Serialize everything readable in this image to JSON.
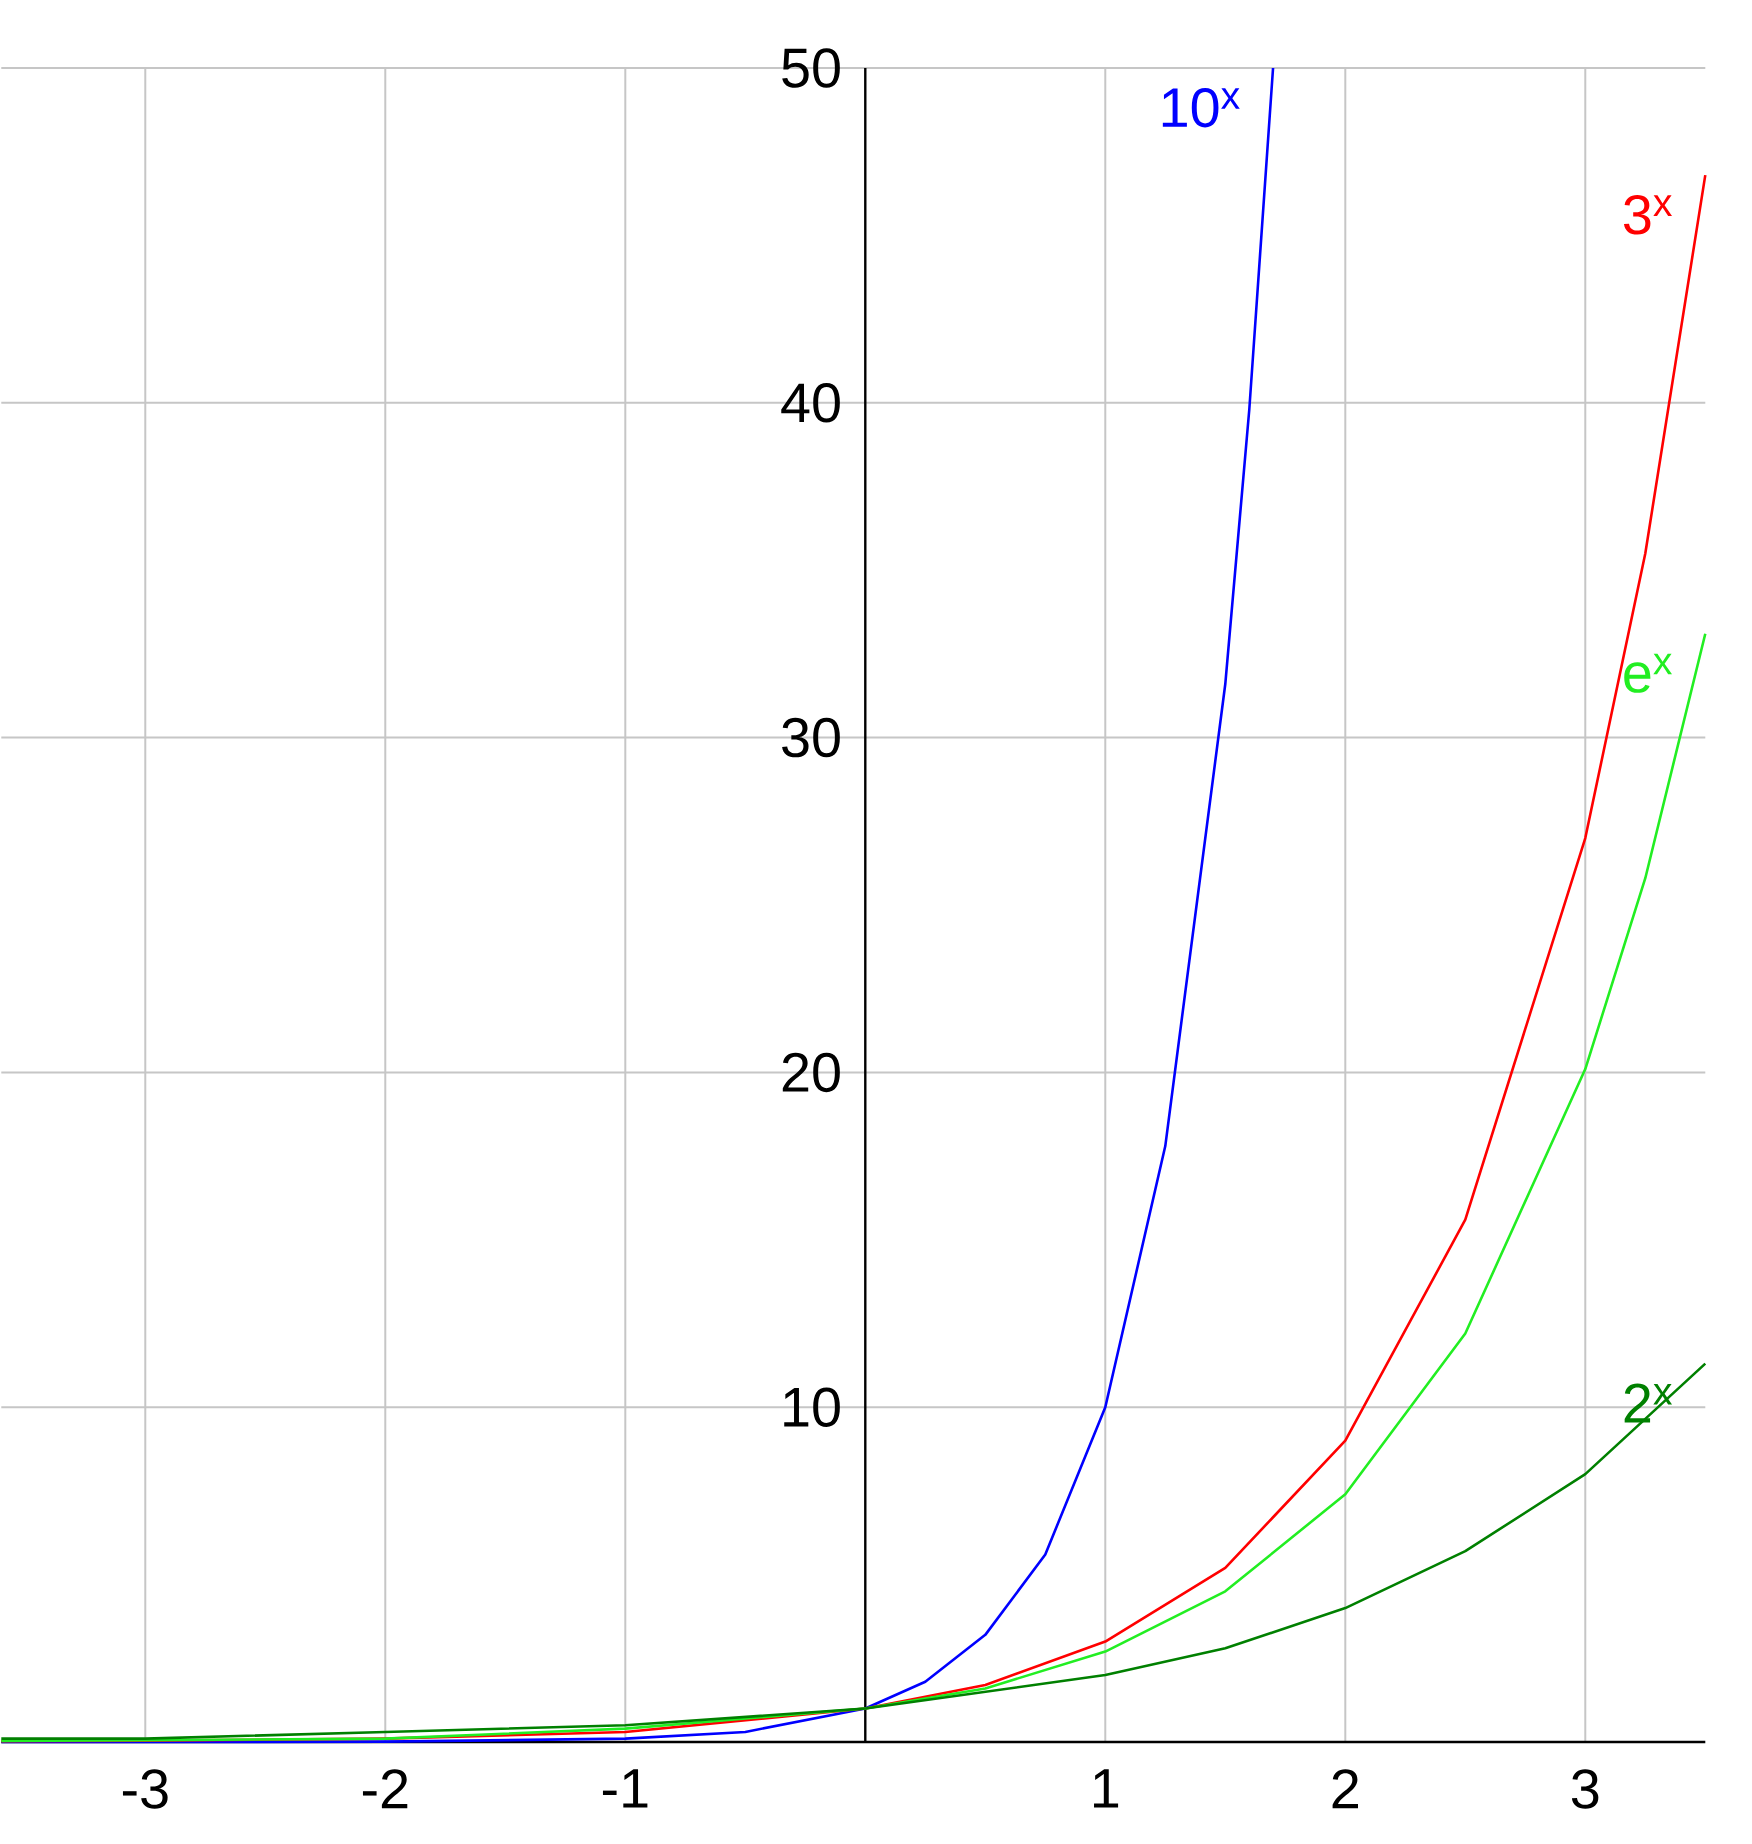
{
  "chart_data": {
    "type": "line",
    "xlim": [
      -3.6,
      3.5
    ],
    "ylim": [
      0,
      50
    ],
    "xticks": [
      -3,
      -2,
      -1,
      1,
      2,
      3
    ],
    "yticks": [
      10,
      20,
      30,
      40,
      50
    ],
    "grid": true,
    "marker": "none",
    "line_style": "solid",
    "series": [
      {
        "name": "10$^{x}$",
        "color": "#0000ff",
        "x": [
          -3.6,
          -3,
          -2,
          -1,
          -0.5,
          0,
          0.25,
          0.5,
          0.75,
          1,
          1.25,
          1.5,
          1.6,
          1.699
        ],
        "values": [
          0,
          0,
          0.01,
          0.1,
          0.3,
          1,
          1.8,
          3.2,
          5.6,
          10,
          17.8,
          31.6,
          39.8,
          50
        ]
      },
      {
        "name": "3$^{x}$",
        "color": "#ff0000",
        "x": [
          -3.6,
          -3,
          -2,
          -1,
          0,
          0.5,
          1,
          1.5,
          2,
          2.5,
          3,
          3.25,
          3.5
        ],
        "values": [
          0.02,
          0.04,
          0.1,
          0.3,
          1,
          1.7,
          3,
          5.2,
          9,
          15.6,
          27,
          35.5,
          46.8
        ]
      },
      {
        "name": "e$^{x}$",
        "color": "#22ee22",
        "x": [
          -3.6,
          -3,
          -2,
          -1,
          0,
          0.5,
          1,
          1.5,
          2,
          2.5,
          3,
          3.25,
          3.5
        ],
        "values": [
          0.03,
          0.05,
          0.1,
          0.4,
          1,
          1.6,
          2.7,
          4.5,
          7.4,
          12.2,
          20.1,
          25.8,
          33.1
        ]
      },
      {
        "name": "2$^{x}$",
        "color": "#008000",
        "x": [
          -3.6,
          -3,
          -2,
          -1,
          0,
          1,
          1.5,
          2,
          2.5,
          3,
          3.5
        ],
        "values": [
          0.1,
          0.1,
          0.3,
          0.5,
          1,
          2,
          2.8,
          4,
          5.7,
          8,
          11.3
        ]
      }
    ]
  }
}
